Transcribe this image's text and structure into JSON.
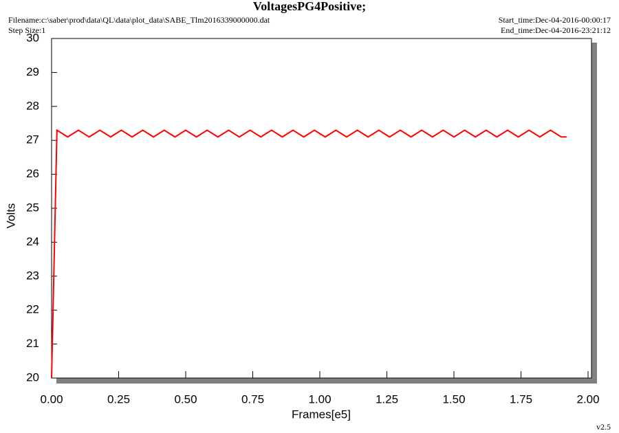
{
  "chart_data": {
    "type": "line",
    "title": "VoltagesPG4Positive;",
    "filename": "Filename:c:\\saber\\prod\\data\\QL\\data\\plot_data\\SABE_Tlm2016339000000.dat",
    "step_size": "Step Size:1",
    "start_time": "Start_time:Dec-04-2016-00:00:17",
    "end_time": "End_time:Dec-04-2016-23:21:12",
    "version": "v2.5",
    "xlabel": "Frames[e5]",
    "ylabel": "Volts",
    "x": [
      0,
      0.02,
      0.06,
      0.1,
      0.14,
      0.18,
      0.22,
      0.26,
      0.3,
      0.34,
      0.38,
      0.42,
      0.46,
      0.5,
      0.54,
      0.58,
      0.62,
      0.66,
      0.7,
      0.74,
      0.78,
      0.82,
      0.86,
      0.9,
      0.94,
      0.98,
      1.02,
      1.06,
      1.1,
      1.14,
      1.18,
      1.22,
      1.26,
      1.3,
      1.34,
      1.38,
      1.42,
      1.46,
      1.5,
      1.54,
      1.58,
      1.62,
      1.66,
      1.7,
      1.74,
      1.78,
      1.82,
      1.86,
      1.9,
      1.92
    ],
    "series": [
      {
        "name": "VoltagesPG4Positive",
        "color": "#ff0000",
        "values": [
          20,
          27.3,
          27.1,
          27.3,
          27.1,
          27.3,
          27.1,
          27.3,
          27.1,
          27.3,
          27.1,
          27.3,
          27.1,
          27.3,
          27.1,
          27.3,
          27.1,
          27.3,
          27.1,
          27.3,
          27.1,
          27.3,
          27.1,
          27.3,
          27.1,
          27.3,
          27.1,
          27.3,
          27.1,
          27.3,
          27.1,
          27.3,
          27.1,
          27.3,
          27.1,
          27.3,
          27.1,
          27.3,
          27.1,
          27.3,
          27.1,
          27.3,
          27.1,
          27.3,
          27.1,
          27.3,
          27.1,
          27.3,
          27.1,
          27.1
        ]
      }
    ],
    "xlim": [
      0,
      2.0
    ],
    "ylim": [
      20,
      30
    ],
    "xticks": [
      {
        "value": 0,
        "label": "0.00"
      },
      {
        "value": 0.25,
        "label": "0.25"
      },
      {
        "value": 0.5,
        "label": "0.50"
      },
      {
        "value": 0.75,
        "label": "0.75"
      },
      {
        "value": 1.0,
        "label": "1.00"
      },
      {
        "value": 1.25,
        "label": "1.25"
      },
      {
        "value": 1.5,
        "label": "1.50"
      },
      {
        "value": 1.75,
        "label": "1.75"
      },
      {
        "value": 2.0,
        "label": "2.00"
      }
    ],
    "yticks": [
      20,
      21,
      22,
      23,
      24,
      25,
      26,
      27,
      28,
      29,
      30
    ]
  }
}
